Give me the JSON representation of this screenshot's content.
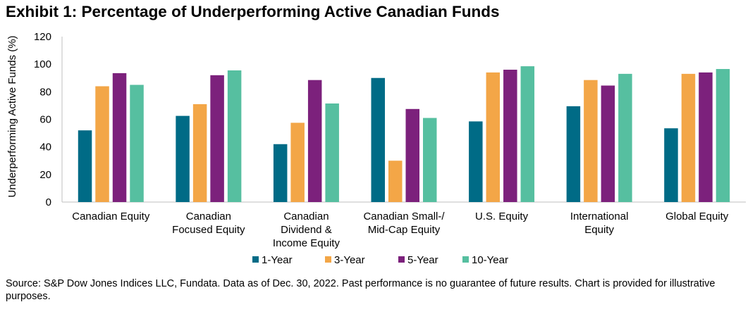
{
  "title": "Exhibit 1: Percentage of Underperforming Active Canadian Funds",
  "footer": "Source: S&P Dow Jones Indices LLC, Fundata.  Data as of Dec. 30, 2022.  Past performance is no guarantee of future results. Chart is provided for illustrative purposes.",
  "chart_data": {
    "type": "bar",
    "title": "Exhibit 1: Percentage of Underperforming Active Canadian Funds",
    "xlabel": "",
    "ylabel": "Underperforming Active Funds (%)",
    "ylim": [
      0,
      120
    ],
    "yticks": [
      0,
      20,
      40,
      60,
      80,
      100,
      120
    ],
    "grid": false,
    "legend_position": "bottom",
    "categories": [
      [
        "Canadian Equity"
      ],
      [
        "Canadian",
        "Focused Equity"
      ],
      [
        "Canadian",
        "Dividend &",
        "Income Equity"
      ],
      [
        "Canadian Small-/",
        "Mid-Cap Equity"
      ],
      [
        "U.S. Equity"
      ],
      [
        "International",
        "Equity"
      ],
      [
        "Global Equity"
      ]
    ],
    "series": [
      {
        "name": "1-Year",
        "color": "#006b86",
        "values": [
          52.0,
          62.5,
          42.0,
          90.0,
          58.5,
          69.5,
          53.5
        ]
      },
      {
        "name": "3-Year",
        "color": "#f3a647",
        "values": [
          84.0,
          71.0,
          57.5,
          30.0,
          94.0,
          88.5,
          93.0
        ]
      },
      {
        "name": "5-Year",
        "color": "#7c217c",
        "values": [
          93.5,
          92.0,
          88.5,
          67.5,
          96.0,
          84.5,
          94.0
        ]
      },
      {
        "name": "10-Year",
        "color": "#56bfa0",
        "values": [
          85.0,
          95.5,
          71.5,
          61.0,
          98.5,
          93.0,
          96.5
        ]
      }
    ]
  }
}
